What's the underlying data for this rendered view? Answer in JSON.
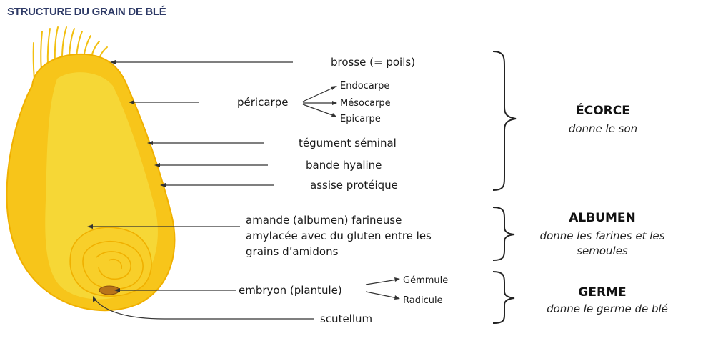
{
  "title": "STRUCTURE DU GRAIN DE BLÉ",
  "labels": {
    "brosse": "brosse (= poils)",
    "pericarpe": "péricarpe",
    "endocarpe": "Endocarpe",
    "mesocarpe": "Mésocarpe",
    "epicarpe": "Epicarpe",
    "tegument": "tégument séminal",
    "bande": "bande hyaline",
    "assise": "assise protéique",
    "amande_1": "amande (albumen) farineuse",
    "amande_2": "amylacée avec du gluten entre les",
    "amande_3": "grains d’amidons",
    "embryon": "embryon (plantule)",
    "gemmule": "Gémmule",
    "radicule": "Radicule",
    "scutellum": "scutellum"
  },
  "groups": {
    "ecorce": {
      "name": "ÉCORCE",
      "desc": "donne le son"
    },
    "albumen": {
      "name": "ALBUMEN",
      "desc_1": "donne les farines et les",
      "desc_2": "semoules"
    },
    "germe": {
      "name": "GERME",
      "desc": "donne le germe de blé"
    }
  },
  "colors": {
    "title": "#2e3a66",
    "grain_outer": "#f7c51a",
    "grain_inner": "#f5d83a",
    "grain_edge": "#f0b000",
    "embryo": "#b8741a"
  }
}
